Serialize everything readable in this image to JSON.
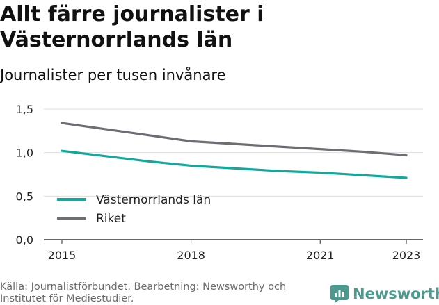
{
  "title": "Allt färre journalister i Västernorrlands län",
  "subtitle": "Journalister per tusen invånare",
  "source": "Källa: Journalistförbundet. Bearbetning: Newsworthy och Institutet för Mediestudier.",
  "brand": "Newsworthy",
  "colors": {
    "series_1": "#13a89e",
    "series_2": "#6e6d74",
    "grid": "#dddddd",
    "brand": "#4a9a8e"
  },
  "chart_data": {
    "type": "line",
    "x": [
      2015,
      2016,
      2017,
      2018,
      2019,
      2020,
      2021,
      2022,
      2023
    ],
    "x_ticks": [
      "2015",
      "2018",
      "2021",
      "2023"
    ],
    "xlim": [
      2015,
      2023
    ],
    "ylim": [
      0,
      1.5
    ],
    "y_ticks": [
      "0,0",
      "0,5",
      "1,0",
      "1,5"
    ],
    "series": [
      {
        "name": "Västernorrlands län",
        "values": [
          1.02,
          0.96,
          0.9,
          0.85,
          0.82,
          0.79,
          0.77,
          0.74,
          0.71
        ]
      },
      {
        "name": "Riket",
        "values": [
          1.34,
          1.27,
          1.2,
          1.13,
          1.1,
          1.07,
          1.04,
          1.01,
          0.97
        ]
      }
    ],
    "legend_position": "bottom-left",
    "grid": true
  }
}
